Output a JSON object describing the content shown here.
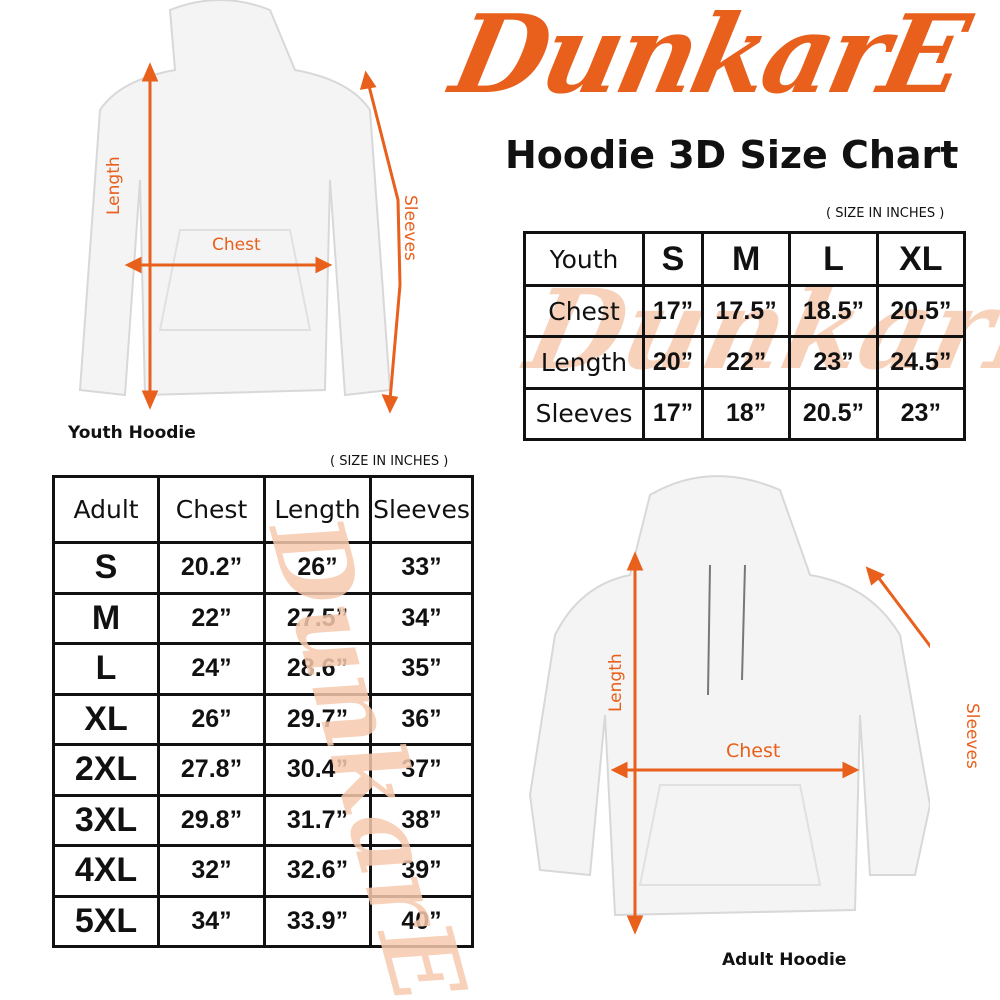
{
  "brand": {
    "logo": "DunkarE",
    "accent": "#E8601C"
  },
  "title": "Hoodie 3D Size Chart",
  "youth": {
    "caption": "Youth Hoodie",
    "unit_note": "( SIZE IN INCHES )",
    "labels": {
      "length": "Length",
      "chest": "Chest",
      "sleeves": "Sleeves"
    },
    "headers": [
      "Youth",
      "S",
      "M",
      "L",
      "XL"
    ],
    "rows": [
      {
        "label": "Chest",
        "values": [
          "17”",
          "17.5”",
          "18.5”",
          "20.5”"
        ]
      },
      {
        "label": "Length",
        "values": [
          "20”",
          "22”",
          "23”",
          "24.5”"
        ]
      },
      {
        "label": "Sleeves",
        "values": [
          "17”",
          "18”",
          "20.5”",
          "23”"
        ]
      }
    ]
  },
  "adult": {
    "caption": "Adult Hoodie",
    "unit_note": "( SIZE IN INCHES )",
    "labels": {
      "length": "Length",
      "chest": "Chest",
      "sleeves": "Sleeves"
    },
    "headers": [
      "Adult",
      "Chest",
      "Length",
      "Sleeves"
    ],
    "rows": [
      {
        "size": "S",
        "values": [
          "20.2”",
          "26”",
          "33”"
        ]
      },
      {
        "size": "M",
        "values": [
          "22”",
          "27.5”",
          "34”"
        ]
      },
      {
        "size": "L",
        "values": [
          "24”",
          "28.6”",
          "35”"
        ]
      },
      {
        "size": "XL",
        "values": [
          "26”",
          "29.7”",
          "36”"
        ]
      },
      {
        "size": "2XL",
        "values": [
          "27.8”",
          "30.4”",
          "37”"
        ]
      },
      {
        "size": "3XL",
        "values": [
          "29.8”",
          "31.7”",
          "38”"
        ]
      },
      {
        "size": "4XL",
        "values": [
          "32”",
          "32.6”",
          "39”"
        ]
      },
      {
        "size": "5XL",
        "values": [
          "34”",
          "33.9”",
          "40”"
        ]
      }
    ]
  }
}
